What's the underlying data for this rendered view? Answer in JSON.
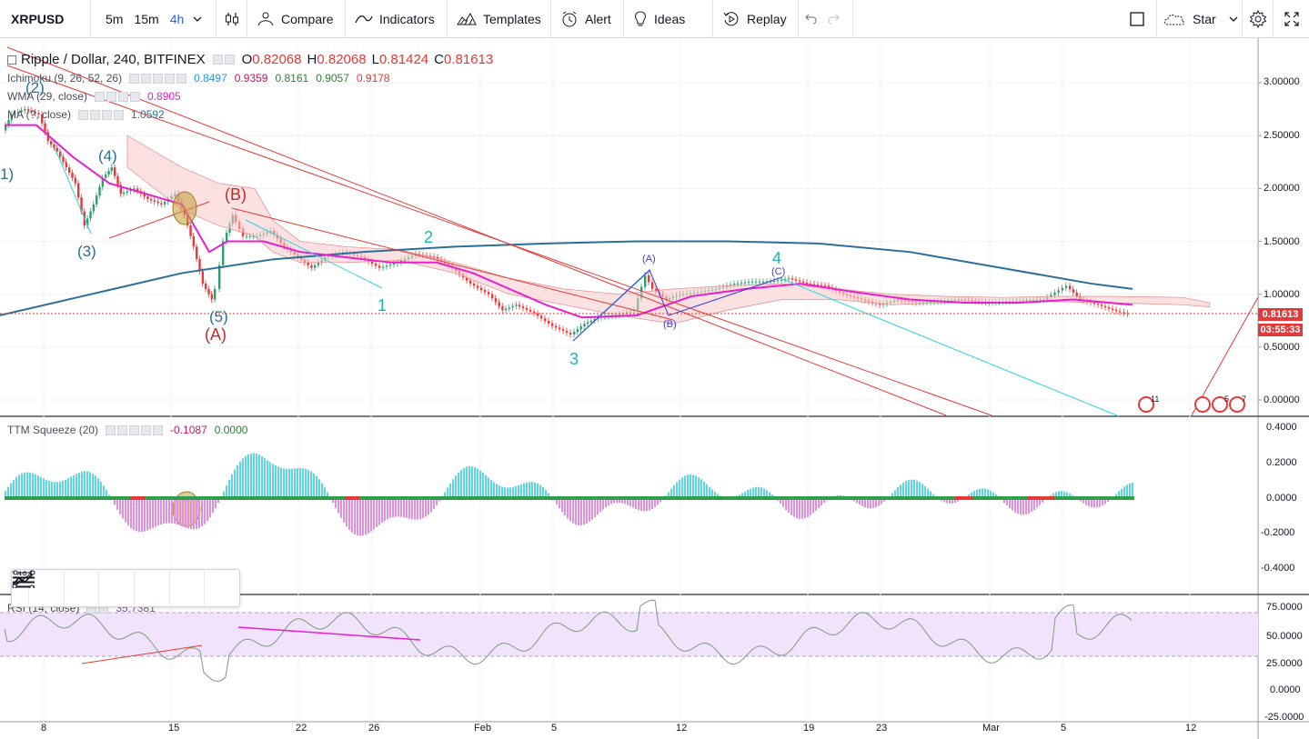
{
  "toolbar": {
    "symbol": "XRPUSD",
    "timeframes": [
      "5m",
      "15m",
      "4h"
    ],
    "active_timeframe": "4h",
    "compare": "Compare",
    "indicators": "Indicators",
    "templates": "Templates",
    "alert": "Alert",
    "ideas": "Ideas",
    "replay": "Replay",
    "star": "Star"
  },
  "legend": {
    "symbol_title": "Ripple / Dollar, 240, BITFINEX",
    "ohlc": [
      {
        "k": "O",
        "v": "0.82068"
      },
      {
        "k": "H",
        "v": "0.82068"
      },
      {
        "k": "L",
        "v": "0.81424"
      },
      {
        "k": "C",
        "v": "0.81613"
      }
    ],
    "ichimoku": {
      "name": "Ichimoku (9, 26, 52, 26)",
      "values": [
        "0.8497",
        "0.9359",
        "0.8161",
        "0.9057",
        "0.9178"
      ],
      "colors": [
        "#2196f3",
        "#c2185b",
        "#2e7d32",
        "#2e7d32",
        "#e53935"
      ]
    },
    "wma": {
      "name": "WMA (29, close)",
      "value": "0.8905"
    },
    "ma": {
      "name": "MA (?, close)",
      "value": "1.0592"
    },
    "ttm": {
      "name": "TTM Squeeze (20)",
      "v1": "-0.1087",
      "v2": "0.0000"
    },
    "rsi": {
      "name": "RSI (14, close)",
      "value": "35.7381"
    }
  },
  "price_axis": [
    "3.00000",
    "2.50000",
    "2.00000",
    "1.50000",
    "1.00000",
    "0.50000",
    "0.00000"
  ],
  "ttm_axis": [
    "0.4000",
    "0.2000",
    "0.0000",
    "-0.2000",
    "-0.4000"
  ],
  "rsi_axis": [
    "75.0000",
    "50.0000",
    "25.0000",
    "0.0000",
    "-25.0000"
  ],
  "time_axis": [
    "8",
    "15",
    "22",
    "26",
    "Feb",
    "5",
    "12",
    "19",
    "23",
    "Mar",
    "5",
    "12"
  ],
  "last_price": "0.81613",
  "countdown": "03:55:33",
  "wave_labels": [
    "(2)",
    "(4)",
    "(3)",
    "(5)",
    "(A)",
    "(B)",
    "2",
    "1",
    "3",
    "4",
    "(A)",
    "(B)",
    "(C)",
    "1)"
  ],
  "event_badges": [
    "11",
    "5",
    "7"
  ],
  "colors": {
    "up": "#2e9e6e",
    "down": "#e53935",
    "wma": "#e91ecf",
    "ma": "#2a6f97",
    "trend": "#e53935",
    "cyan": "#2bd3e5",
    "ttm_pos": "#5bd7e6",
    "ttm_neg": "#e28fe2",
    "rsi_band": "#f1e3fb"
  },
  "drawing_tools": [
    "lines-icon",
    "ruler-icon",
    "pattern-icon",
    "trendline-icon",
    "fib-icon",
    "path-icon"
  ]
}
